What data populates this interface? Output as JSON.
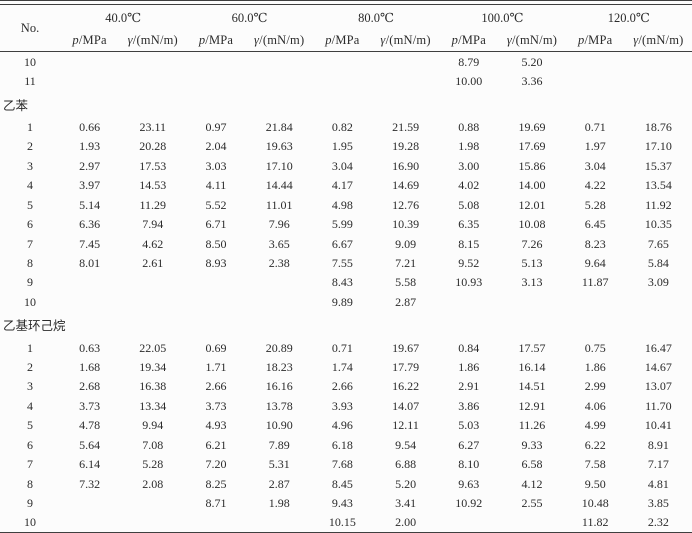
{
  "page": {
    "background": "#fcfcfc",
    "text_color": "#2b2b2b",
    "rule_color": "#3f3f3f"
  },
  "table": {
    "no_header": "No.",
    "temperatures": [
      "40.0℃",
      "60.0℃",
      "80.0℃",
      "100.0℃",
      "120.0℃"
    ],
    "subcolumns": {
      "pressure_italic": "p",
      "pressure_rest": "/MPa",
      "gamma_italic": "γ",
      "gamma_rest": "/(mN/m)"
    },
    "rows": [
      {
        "type": "data",
        "no": "10",
        "cells": [
          "",
          "",
          "",
          "",
          "",
          "",
          "8.79",
          "5.20",
          "",
          ""
        ]
      },
      {
        "type": "data",
        "no": "11",
        "cells": [
          "",
          "",
          "",
          "",
          "",
          "",
          "10.00",
          "3.36",
          "",
          ""
        ]
      },
      {
        "type": "section",
        "label": "乙苯"
      },
      {
        "type": "data",
        "no": "1",
        "cells": [
          "0.66",
          "23.11",
          "0.97",
          "21.84",
          "0.82",
          "21.59",
          "0.88",
          "19.69",
          "0.71",
          "18.76"
        ]
      },
      {
        "type": "data",
        "no": "2",
        "cells": [
          "1.93",
          "20.28",
          "2.04",
          "19.63",
          "1.95",
          "19.28",
          "1.98",
          "17.69",
          "1.97",
          "17.10"
        ]
      },
      {
        "type": "data",
        "no": "3",
        "cells": [
          "2.97",
          "17.53",
          "3.03",
          "17.10",
          "3.04",
          "16.90",
          "3.00",
          "15.86",
          "3.04",
          "15.37"
        ]
      },
      {
        "type": "data",
        "no": "4",
        "cells": [
          "3.97",
          "14.53",
          "4.11",
          "14.44",
          "4.17",
          "14.69",
          "4.02",
          "14.00",
          "4.22",
          "13.54"
        ]
      },
      {
        "type": "data",
        "no": "5",
        "cells": [
          "5.14",
          "11.29",
          "5.52",
          "11.01",
          "4.98",
          "12.76",
          "5.08",
          "12.01",
          "5.28",
          "11.92"
        ]
      },
      {
        "type": "data",
        "no": "6",
        "cells": [
          "6.36",
          "7.94",
          "6.71",
          "7.96",
          "5.99",
          "10.39",
          "6.35",
          "10.08",
          "6.45",
          "10.35"
        ]
      },
      {
        "type": "data",
        "no": "7",
        "cells": [
          "7.45",
          "4.62",
          "8.50",
          "3.65",
          "6.67",
          "9.09",
          "8.15",
          "7.26",
          "8.23",
          "7.65"
        ]
      },
      {
        "type": "data",
        "no": "8",
        "cells": [
          "8.01",
          "2.61",
          "8.93",
          "2.38",
          "7.55",
          "7.21",
          "9.52",
          "5.13",
          "9.64",
          "5.84"
        ]
      },
      {
        "type": "data",
        "no": "9",
        "cells": [
          "",
          "",
          "",
          "",
          "8.43",
          "5.58",
          "10.93",
          "3.13",
          "11.87",
          "3.09"
        ]
      },
      {
        "type": "data",
        "no": "10",
        "cells": [
          "",
          "",
          "",
          "",
          "9.89",
          "2.87",
          "",
          "",
          "",
          ""
        ]
      },
      {
        "type": "section",
        "label": "乙基环己烷"
      },
      {
        "type": "data",
        "no": "1",
        "cells": [
          "0.63",
          "22.05",
          "0.69",
          "20.89",
          "0.71",
          "19.67",
          "0.84",
          "17.57",
          "0.75",
          "16.47"
        ]
      },
      {
        "type": "data",
        "no": "2",
        "cells": [
          "1.68",
          "19.34",
          "1.71",
          "18.23",
          "1.74",
          "17.79",
          "1.86",
          "16.14",
          "1.86",
          "14.67"
        ]
      },
      {
        "type": "data",
        "no": "3",
        "cells": [
          "2.68",
          "16.38",
          "2.66",
          "16.16",
          "2.66",
          "16.22",
          "2.91",
          "14.51",
          "2.99",
          "13.07"
        ]
      },
      {
        "type": "data",
        "no": "4",
        "cells": [
          "3.73",
          "13.34",
          "3.73",
          "13.78",
          "3.93",
          "14.07",
          "3.86",
          "12.91",
          "4.06",
          "11.70"
        ]
      },
      {
        "type": "data",
        "no": "5",
        "cells": [
          "4.78",
          "9.94",
          "4.93",
          "10.90",
          "4.96",
          "12.11",
          "5.03",
          "11.26",
          "4.99",
          "10.41"
        ]
      },
      {
        "type": "data",
        "no": "6",
        "cells": [
          "5.64",
          "7.08",
          "6.21",
          "7.89",
          "6.18",
          "9.54",
          "6.27",
          "9.33",
          "6.22",
          "8.91"
        ]
      },
      {
        "type": "data",
        "no": "7",
        "cells": [
          "6.14",
          "5.28",
          "7.20",
          "5.31",
          "7.68",
          "6.88",
          "8.10",
          "6.58",
          "7.58",
          "7.17"
        ]
      },
      {
        "type": "data",
        "no": "8",
        "cells": [
          "7.32",
          "2.08",
          "8.25",
          "2.87",
          "8.45",
          "5.20",
          "9.63",
          "4.12",
          "9.50",
          "4.81"
        ]
      },
      {
        "type": "data",
        "no": "9",
        "cells": [
          "",
          "",
          "8.71",
          "1.98",
          "9.43",
          "3.41",
          "10.92",
          "2.55",
          "10.48",
          "3.85"
        ]
      },
      {
        "type": "data",
        "no": "10",
        "cells": [
          "",
          "",
          "",
          "",
          "10.15",
          "2.00",
          "",
          "",
          "11.82",
          "2.32"
        ]
      }
    ]
  }
}
